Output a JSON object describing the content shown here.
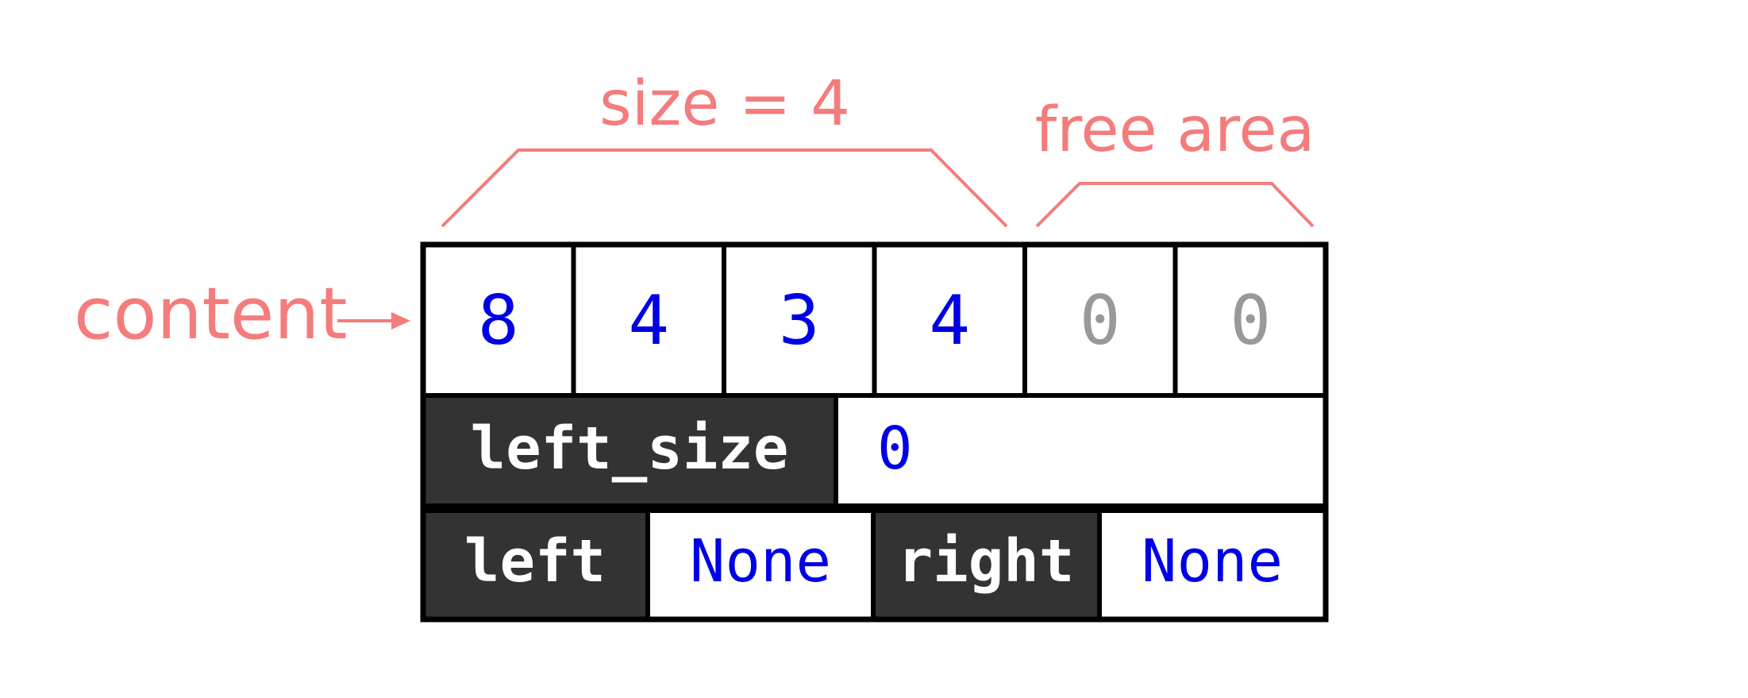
{
  "annotations": {
    "size_label": "size = 4",
    "free_label": "free area",
    "content_label": "content"
  },
  "content_cells": [
    {
      "value": "8",
      "state": "used"
    },
    {
      "value": "4",
      "state": "used"
    },
    {
      "value": "3",
      "state": "used"
    },
    {
      "value": "4",
      "state": "used"
    },
    {
      "value": "0",
      "state": "free"
    },
    {
      "value": "0",
      "state": "free"
    }
  ],
  "left_size": {
    "key": "left_size",
    "value": "0"
  },
  "left": {
    "key": "left",
    "value": "None"
  },
  "right": {
    "key": "right",
    "value": "None"
  },
  "colors": {
    "annotation": "#f47c7c",
    "used_value": "#0000e6",
    "free_value": "#999999",
    "key_background": "#333333",
    "key_text": "#ffffff",
    "border": "#000000"
  }
}
